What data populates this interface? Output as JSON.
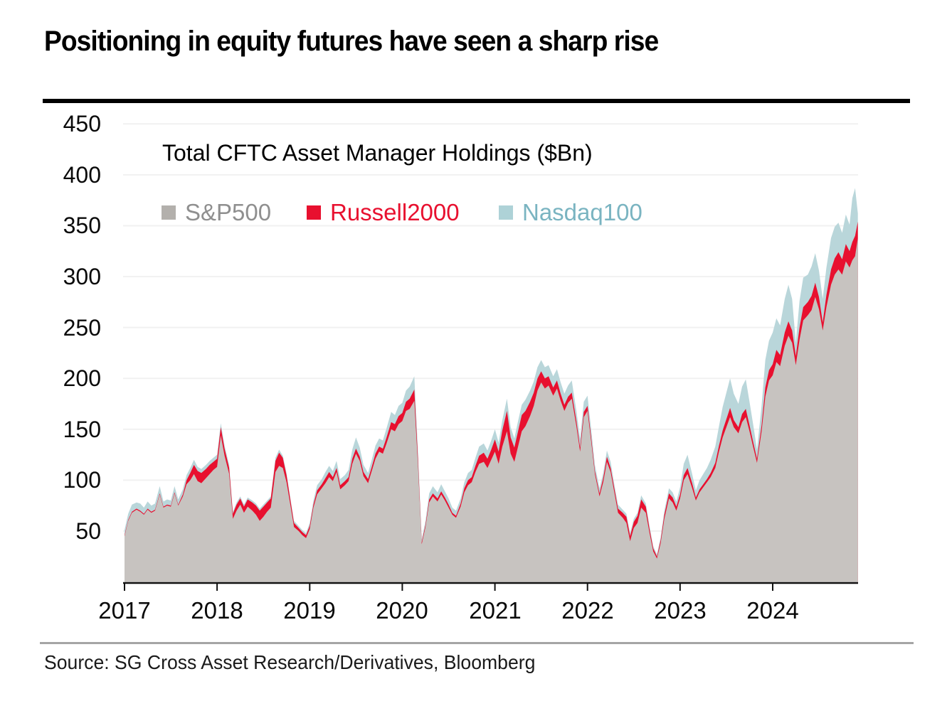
{
  "page": {
    "title": "Positioning in equity futures have seen a sharp rise",
    "source": "Source: SG Cross Asset Research/Derivatives, Bloomberg"
  },
  "colors": {
    "axis": "#111111",
    "grid": "#f1f1f1",
    "title_rule": "#000000",
    "source_rule": "#a5a5a5"
  },
  "chart_data": {
    "type": "area",
    "stacked": true,
    "title": "Total CFTC Asset Manager Holdings ($Bn)",
    "xlabel": "",
    "ylabel": "",
    "ylim": [
      0,
      460
    ],
    "xlim": [
      2017,
      2025
    ],
    "y_ticks": [
      50,
      100,
      150,
      200,
      250,
      300,
      350,
      400,
      450
    ],
    "x_ticks": [
      2017,
      2018,
      2019,
      2020,
      2021,
      2022,
      2023,
      2024
    ],
    "grid": "horizontal",
    "legend_position": "top-left-inside",
    "series": [
      {
        "name": "S&P500",
        "fill": "#c7c3c0",
        "swatch": "#b3b0ac",
        "label_color": "#8f8f8f"
      },
      {
        "name": "Russell2000",
        "fill": "#e8102f",
        "swatch": "#e8102f",
        "label_color": "#e8102f"
      },
      {
        "name": "Nasdaq100",
        "fill": "#b9d6da",
        "swatch": "#aed2d7",
        "label_color": "#7ab4c1"
      }
    ],
    "x_unit": "decimal_year",
    "points_format": [
      "year",
      "sp500",
      "russell2000",
      "nasdaq100"
    ],
    "points": [
      [
        2017.0,
        45,
        1,
        5
      ],
      [
        2017.04,
        60,
        1,
        6
      ],
      [
        2017.08,
        68,
        1,
        7
      ],
      [
        2017.13,
        71,
        1,
        6
      ],
      [
        2017.17,
        69,
        1,
        7
      ],
      [
        2017.21,
        66,
        1,
        6
      ],
      [
        2017.25,
        71,
        1,
        7
      ],
      [
        2017.29,
        68,
        1,
        6
      ],
      [
        2017.33,
        70,
        1,
        6
      ],
      [
        2017.38,
        86,
        1,
        7
      ],
      [
        2017.42,
        73,
        1,
        5
      ],
      [
        2017.46,
        75,
        1,
        5
      ],
      [
        2017.5,
        74,
        1,
        5
      ],
      [
        2017.54,
        87,
        1,
        6
      ],
      [
        2017.58,
        75,
        1,
        5
      ],
      [
        2017.63,
        84,
        2,
        5
      ],
      [
        2017.67,
        96,
        4,
        5
      ],
      [
        2017.71,
        100,
        7,
        5
      ],
      [
        2017.75,
        106,
        9,
        5
      ],
      [
        2017.79,
        99,
        10,
        4
      ],
      [
        2017.83,
        97,
        10,
        4
      ],
      [
        2017.88,
        102,
        9,
        4
      ],
      [
        2017.92,
        106,
        9,
        4
      ],
      [
        2017.96,
        110,
        8,
        4
      ],
      [
        2018.0,
        113,
        8,
        4
      ],
      [
        2018.04,
        144,
        8,
        4
      ],
      [
        2018.08,
        124,
        7,
        3
      ],
      [
        2018.13,
        106,
        6,
        3
      ],
      [
        2018.17,
        62,
        5,
        2
      ],
      [
        2018.21,
        70,
        6,
        2
      ],
      [
        2018.25,
        76,
        6,
        2
      ],
      [
        2018.29,
        68,
        6,
        2
      ],
      [
        2018.33,
        74,
        7,
        2
      ],
      [
        2018.38,
        70,
        8,
        2
      ],
      [
        2018.42,
        66,
        9,
        2
      ],
      [
        2018.46,
        60,
        10,
        2
      ],
      [
        2018.5,
        64,
        10,
        2
      ],
      [
        2018.54,
        69,
        9,
        2
      ],
      [
        2018.58,
        73,
        9,
        2
      ],
      [
        2018.63,
        108,
        11,
        3
      ],
      [
        2018.67,
        114,
        13,
        3
      ],
      [
        2018.71,
        112,
        10,
        2
      ],
      [
        2018.75,
        98,
        7,
        2
      ],
      [
        2018.79,
        76,
        5,
        2
      ],
      [
        2018.83,
        54,
        4,
        2
      ],
      [
        2018.88,
        50,
        3,
        2
      ],
      [
        2018.92,
        46,
        3,
        2
      ],
      [
        2018.96,
        43,
        3,
        2
      ],
      [
        2019.0,
        52,
        3,
        3
      ],
      [
        2019.04,
        73,
        3,
        4
      ],
      [
        2019.08,
        86,
        4,
        5
      ],
      [
        2019.13,
        92,
        4,
        5
      ],
      [
        2019.17,
        97,
        5,
        6
      ],
      [
        2019.21,
        103,
        5,
        6
      ],
      [
        2019.25,
        99,
        4,
        6
      ],
      [
        2019.29,
        108,
        4,
        7
      ],
      [
        2019.33,
        91,
        4,
        6
      ],
      [
        2019.38,
        95,
        4,
        6
      ],
      [
        2019.42,
        99,
        4,
        7
      ],
      [
        2019.46,
        116,
        5,
        9
      ],
      [
        2019.5,
        126,
        5,
        11
      ],
      [
        2019.54,
        119,
        4,
        9
      ],
      [
        2019.58,
        104,
        4,
        7
      ],
      [
        2019.63,
        97,
        4,
        6
      ],
      [
        2019.67,
        109,
        4,
        7
      ],
      [
        2019.71,
        121,
        5,
        8
      ],
      [
        2019.75,
        128,
        5,
        8
      ],
      [
        2019.79,
        126,
        5,
        8
      ],
      [
        2019.83,
        136,
        6,
        9
      ],
      [
        2019.88,
        150,
        7,
        10
      ],
      [
        2019.92,
        148,
        7,
        9
      ],
      [
        2019.96,
        155,
        8,
        10
      ],
      [
        2020.0,
        158,
        8,
        10
      ],
      [
        2020.04,
        168,
        9,
        11
      ],
      [
        2020.08,
        170,
        10,
        12
      ],
      [
        2020.13,
        178,
        11,
        13
      ],
      [
        2020.17,
        115,
        6,
        7
      ],
      [
        2020.21,
        37,
        2,
        3
      ],
      [
        2020.25,
        54,
        2,
        4
      ],
      [
        2020.29,
        78,
        3,
        6
      ],
      [
        2020.33,
        84,
        3,
        7
      ],
      [
        2020.38,
        79,
        3,
        6
      ],
      [
        2020.42,
        86,
        3,
        7
      ],
      [
        2020.46,
        80,
        3,
        6
      ],
      [
        2020.5,
        73,
        3,
        6
      ],
      [
        2020.54,
        66,
        2,
        5
      ],
      [
        2020.58,
        63,
        2,
        5
      ],
      [
        2020.63,
        74,
        3,
        5
      ],
      [
        2020.67,
        88,
        4,
        6
      ],
      [
        2020.71,
        95,
        5,
        7
      ],
      [
        2020.75,
        98,
        5,
        7
      ],
      [
        2020.79,
        108,
        6,
        8
      ],
      [
        2020.83,
        116,
        8,
        9
      ],
      [
        2020.88,
        118,
        9,
        9
      ],
      [
        2020.92,
        112,
        9,
        8
      ],
      [
        2020.96,
        120,
        10,
        9
      ],
      [
        2021.0,
        128,
        12,
        10
      ],
      [
        2021.04,
        116,
        12,
        9
      ],
      [
        2021.08,
        133,
        16,
        10
      ],
      [
        2021.13,
        148,
        20,
        12
      ],
      [
        2021.17,
        126,
        16,
        10
      ],
      [
        2021.21,
        118,
        14,
        9
      ],
      [
        2021.25,
        133,
        15,
        10
      ],
      [
        2021.29,
        148,
        16,
        10
      ],
      [
        2021.33,
        153,
        15,
        11
      ],
      [
        2021.38,
        163,
        14,
        11
      ],
      [
        2021.42,
        173,
        13,
        11
      ],
      [
        2021.46,
        188,
        12,
        11
      ],
      [
        2021.5,
        196,
        11,
        11
      ],
      [
        2021.54,
        190,
        10,
        11
      ],
      [
        2021.58,
        193,
        9,
        11
      ],
      [
        2021.63,
        183,
        8,
        11
      ],
      [
        2021.67,
        190,
        8,
        11
      ],
      [
        2021.71,
        178,
        7,
        11
      ],
      [
        2021.75,
        168,
        6,
        11
      ],
      [
        2021.79,
        176,
        6,
        11
      ],
      [
        2021.83,
        180,
        6,
        12
      ],
      [
        2021.88,
        153,
        5,
        10
      ],
      [
        2021.92,
        128,
        4,
        9
      ],
      [
        2021.96,
        162,
        5,
        10
      ],
      [
        2022.0,
        168,
        5,
        10
      ],
      [
        2022.04,
        138,
        4,
        8
      ],
      [
        2022.08,
        106,
        3,
        6
      ],
      [
        2022.13,
        84,
        3,
        5
      ],
      [
        2022.17,
        98,
        4,
        5
      ],
      [
        2022.21,
        118,
        5,
        6
      ],
      [
        2022.25,
        108,
        4,
        6
      ],
      [
        2022.29,
        88,
        4,
        4
      ],
      [
        2022.33,
        68,
        4,
        4
      ],
      [
        2022.38,
        63,
        5,
        3
      ],
      [
        2022.42,
        58,
        6,
        3
      ],
      [
        2022.46,
        40,
        5,
        3
      ],
      [
        2022.5,
        53,
        6,
        3
      ],
      [
        2022.54,
        58,
        7,
        3
      ],
      [
        2022.58,
        73,
        8,
        4
      ],
      [
        2022.63,
        68,
        6,
        3
      ],
      [
        2022.67,
        48,
        4,
        3
      ],
      [
        2022.71,
        30,
        3,
        2
      ],
      [
        2022.75,
        23,
        2,
        2
      ],
      [
        2022.79,
        38,
        3,
        3
      ],
      [
        2022.83,
        62,
        4,
        4
      ],
      [
        2022.88,
        82,
        5,
        5
      ],
      [
        2022.92,
        78,
        5,
        5
      ],
      [
        2022.96,
        70,
        4,
        5
      ],
      [
        2023.0,
        82,
        4,
        7
      ],
      [
        2023.04,
        100,
        5,
        11
      ],
      [
        2023.08,
        106,
        6,
        13
      ],
      [
        2023.13,
        92,
        5,
        9
      ],
      [
        2023.17,
        80,
        3,
        7
      ],
      [
        2023.21,
        88,
        3,
        9
      ],
      [
        2023.25,
        93,
        3,
        10
      ],
      [
        2023.29,
        98,
        3,
        11
      ],
      [
        2023.33,
        103,
        4,
        13
      ],
      [
        2023.38,
        112,
        5,
        16
      ],
      [
        2023.42,
        128,
        6,
        19
      ],
      [
        2023.46,
        142,
        7,
        23
      ],
      [
        2023.5,
        152,
        8,
        26
      ],
      [
        2023.54,
        162,
        9,
        29
      ],
      [
        2023.58,
        152,
        7,
        26
      ],
      [
        2023.63,
        146,
        6,
        23
      ],
      [
        2023.67,
        157,
        8,
        27
      ],
      [
        2023.71,
        162,
        8,
        29
      ],
      [
        2023.75,
        148,
        6,
        23
      ],
      [
        2023.79,
        132,
        5,
        17
      ],
      [
        2023.83,
        117,
        4,
        9
      ],
      [
        2023.88,
        148,
        6,
        19
      ],
      [
        2023.92,
        182,
        9,
        27
      ],
      [
        2023.96,
        198,
        10,
        29
      ],
      [
        2024.0,
        203,
        11,
        31
      ],
      [
        2024.04,
        216,
        12,
        31
      ],
      [
        2024.08,
        212,
        11,
        29
      ],
      [
        2024.13,
        232,
        13,
        33
      ],
      [
        2024.17,
        242,
        14,
        36
      ],
      [
        2024.21,
        235,
        12,
        31
      ],
      [
        2024.25,
        213,
        9,
        13
      ],
      [
        2024.29,
        238,
        12,
        26
      ],
      [
        2024.33,
        257,
        13,
        29
      ],
      [
        2024.38,
        262,
        13,
        27
      ],
      [
        2024.42,
        267,
        14,
        29
      ],
      [
        2024.46,
        280,
        14,
        29
      ],
      [
        2024.5,
        268,
        12,
        26
      ],
      [
        2024.54,
        247,
        8,
        23
      ],
      [
        2024.58,
        270,
        12,
        27
      ],
      [
        2024.63,
        292,
        15,
        31
      ],
      [
        2024.67,
        302,
        16,
        31
      ],
      [
        2024.71,
        307,
        17,
        29
      ],
      [
        2024.75,
        302,
        15,
        26
      ],
      [
        2024.79,
        315,
        17,
        29
      ],
      [
        2024.83,
        309,
        16,
        26
      ],
      [
        2024.86,
        316,
        18,
        43
      ],
      [
        2024.89,
        320,
        20,
        47
      ],
      [
        2024.92,
        338,
        16,
        8
      ]
    ]
  }
}
